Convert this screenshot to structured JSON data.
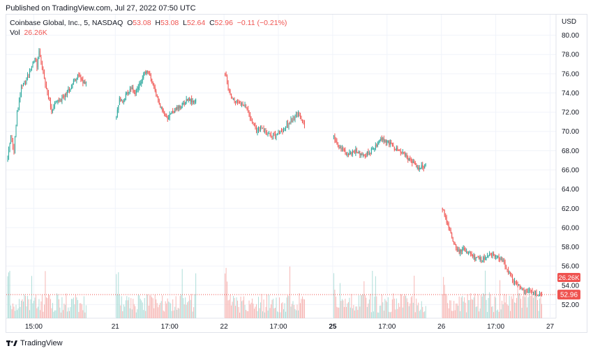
{
  "header": {
    "published": "Published on TradingView.com, Jul 27, 2022 07:50 UTC"
  },
  "legend": {
    "symbol": "Coinbase Global, Inc., 5, NASDAQ",
    "o_label": "O",
    "o_value": "53.08",
    "h_label": "H",
    "h_value": "53.08",
    "l_label": "L",
    "l_value": "52.64",
    "c_label": "C",
    "c_value": "52.96",
    "change": "−0.11 (−0.21%)",
    "vol_label": "Vol",
    "vol_value": "26.26K"
  },
  "footer": {
    "brand": "TradingView"
  },
  "colors": {
    "up": "#26a69a",
    "down": "#ef5350",
    "up_vol": "#a9dbd6",
    "down_vol": "#f6b2b0",
    "grid": "#f0f3fa",
    "axis_text": "#131722"
  },
  "chart_data": {
    "type": "candlestick",
    "y_axis": {
      "currency": "USD",
      "ticks": [
        "80.00",
        "78.00",
        "76.00",
        "74.00",
        "72.00",
        "70.00",
        "68.00",
        "66.00",
        "64.00",
        "62.00",
        "60.00",
        "58.00",
        "56.00",
        "54.00",
        "52.00"
      ],
      "range": [
        50.5,
        81.5
      ]
    },
    "x_axis": {
      "ticks": [
        {
          "label": "15:00",
          "t": 25
        },
        {
          "label": "21",
          "t": 103
        },
        {
          "label": "17:00",
          "t": 155
        },
        {
          "label": "22",
          "t": 207
        },
        {
          "label": "17:00",
          "t": 259
        },
        {
          "label": "25",
          "t": 311
        },
        {
          "label": "17:00",
          "t": 363
        },
        {
          "label": "26",
          "t": 415
        },
        {
          "label": "17:00",
          "t": 467
        },
        {
          "label": "27",
          "t": 519
        }
      ],
      "range": [
        0,
        522
      ]
    },
    "last_price": "52.96",
    "last_volume": "26.26K",
    "waypoints": {
      "description": "approximate close price path over sessions (t = bar index)",
      "points": [
        [
          0,
          67.2
        ],
        [
          3,
          69.5
        ],
        [
          6,
          68.0
        ],
        [
          9,
          72.0
        ],
        [
          13,
          74.5
        ],
        [
          17,
          75.0
        ],
        [
          20,
          76.0
        ],
        [
          24,
          77.0
        ],
        [
          26,
          77.8
        ],
        [
          28,
          76.8
        ],
        [
          30,
          78.5
        ],
        [
          33,
          76.5
        ],
        [
          36,
          75.0
        ],
        [
          39,
          73.5
        ],
        [
          42,
          72.2
        ],
        [
          46,
          73.0
        ],
        [
          50,
          73.2
        ],
        [
          53,
          73.5
        ],
        [
          56,
          74.0
        ],
        [
          60,
          74.5
        ],
        [
          64,
          75.5
        ],
        [
          68,
          75.8
        ],
        [
          72,
          75.0
        ],
        [
          76,
          75.3
        ],
        [
          104,
          71.5
        ],
        [
          107,
          73.5
        ],
        [
          110,
          73.0
        ],
        [
          114,
          74.0
        ],
        [
          118,
          74.5
        ],
        [
          122,
          74.0
        ],
        [
          126,
          74.8
        ],
        [
          130,
          75.8
        ],
        [
          133,
          76.3
        ],
        [
          137,
          75.5
        ],
        [
          141,
          74.0
        ],
        [
          145,
          73.0
        ],
        [
          149,
          72.0
        ],
        [
          153,
          71.5
        ],
        [
          157,
          72.0
        ],
        [
          161,
          72.3
        ],
        [
          165,
          72.5
        ],
        [
          169,
          73.0
        ],
        [
          173,
          73.5
        ],
        [
          177,
          73.0
        ],
        [
          181,
          73.5
        ],
        [
          208,
          76.0
        ],
        [
          211,
          74.5
        ],
        [
          214,
          73.5
        ],
        [
          218,
          73.0
        ],
        [
          222,
          73.0
        ],
        [
          226,
          72.8
        ],
        [
          230,
          72.0
        ],
        [
          234,
          71.0
        ],
        [
          238,
          70.0
        ],
        [
          242,
          70.5
        ],
        [
          246,
          70.0
        ],
        [
          250,
          69.8
        ],
        [
          254,
          69.5
        ],
        [
          258,
          69.8
        ],
        [
          262,
          70.0
        ],
        [
          266,
          70.5
        ],
        [
          270,
          71.0
        ],
        [
          274,
          71.5
        ],
        [
          278,
          71.8
        ],
        [
          281,
          71.0
        ],
        [
          285,
          70.6
        ],
        [
          312,
          69.5
        ],
        [
          315,
          68.5
        ],
        [
          318,
          68.2
        ],
        [
          322,
          68.0
        ],
        [
          326,
          67.6
        ],
        [
          330,
          67.8
        ],
        [
          334,
          68.0
        ],
        [
          338,
          67.6
        ],
        [
          342,
          67.6
        ],
        [
          346,
          67.8
        ],
        [
          350,
          68.2
        ],
        [
          354,
          68.8
        ],
        [
          358,
          69.2
        ],
        [
          362,
          69.0
        ],
        [
          366,
          68.7
        ],
        [
          370,
          68.3
        ],
        [
          374,
          68.0
        ],
        [
          378,
          67.8
        ],
        [
          382,
          67.3
        ],
        [
          386,
          67.0
        ],
        [
          390,
          66.4
        ],
        [
          394,
          66.2
        ],
        [
          398,
          66.3
        ],
        [
          401,
          66.6
        ],
        [
          416,
          62.0
        ],
        [
          419,
          61.0
        ],
        [
          422,
          60.0
        ],
        [
          425,
          59.0
        ],
        [
          428,
          58.2
        ],
        [
          431,
          57.6
        ],
        [
          434,
          57.5
        ],
        [
          437,
          57.8
        ],
        [
          440,
          57.4
        ],
        [
          444,
          57.0
        ],
        [
          448,
          56.8
        ],
        [
          452,
          56.7
        ],
        [
          456,
          56.8
        ],
        [
          460,
          57.0
        ],
        [
          464,
          57.2
        ],
        [
          468,
          57.0
        ],
        [
          472,
          56.8
        ],
        [
          476,
          56.0
        ],
        [
          480,
          55.2
        ],
        [
          484,
          54.5
        ],
        [
          488,
          54.0
        ],
        [
          492,
          53.5
        ],
        [
          496,
          53.2
        ],
        [
          500,
          53.4
        ],
        [
          504,
          53.1
        ],
        [
          508,
          53.0
        ],
        [
          512,
          52.96
        ]
      ]
    },
    "legend": "top-left",
    "grid": true
  }
}
